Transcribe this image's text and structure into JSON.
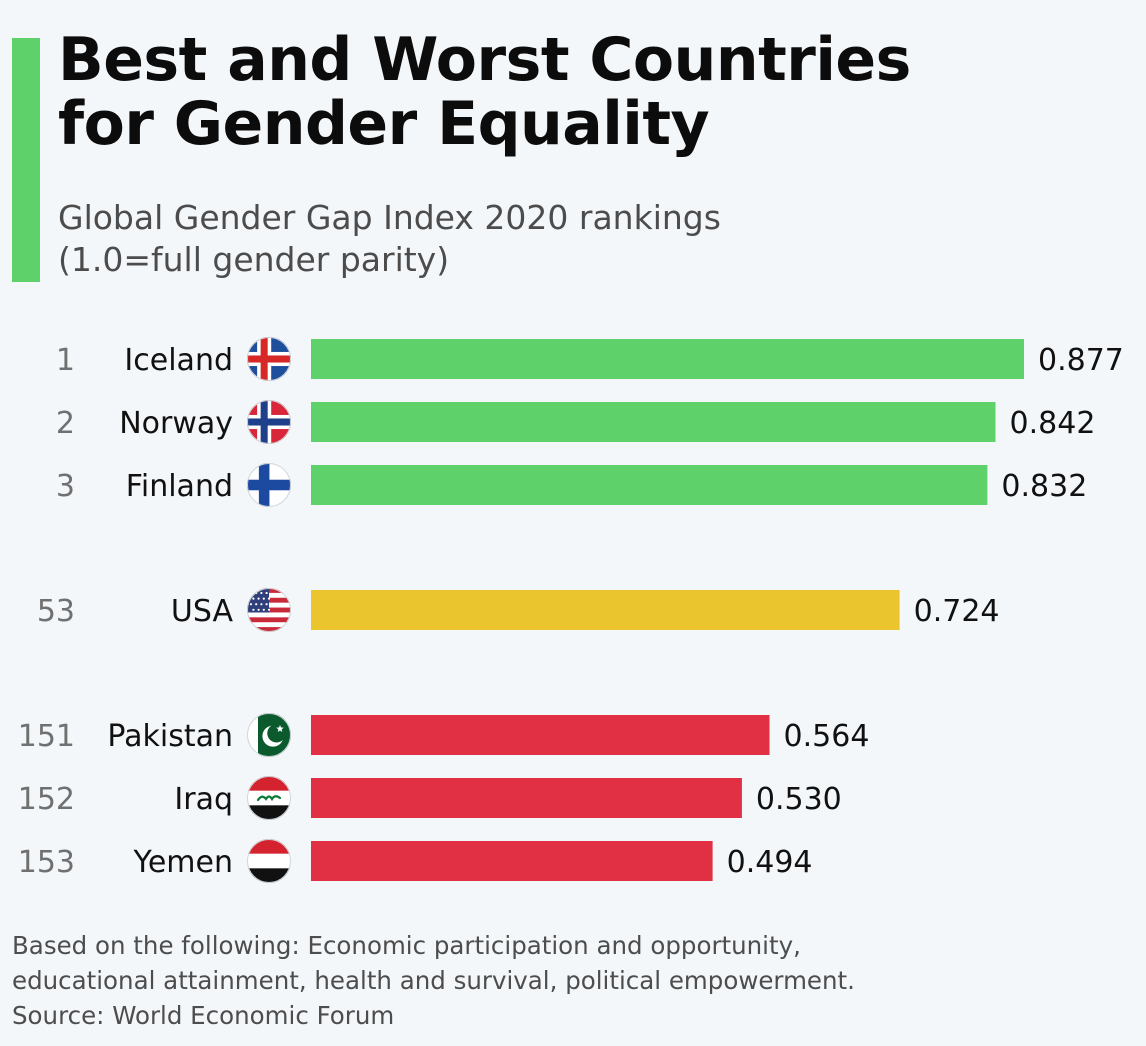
{
  "chart_data": {
    "type": "bar",
    "orientation": "horizontal",
    "title_lines": [
      "Best and Worst Countries",
      "for Gender Equality"
    ],
    "subtitle_lines": [
      "Global Gender Gap Index 2020 rankings",
      "(1.0=full gender parity)"
    ],
    "xlim": [
      0,
      0.877
    ],
    "grid": false,
    "legend": "none",
    "groups": [
      {
        "color": "#5ed16b",
        "rows": [
          {
            "rank": "1",
            "country": "Iceland",
            "flag": "iceland-flag-icon",
            "value": 0.877,
            "value_label": "0.877"
          },
          {
            "rank": "2",
            "country": "Norway",
            "flag": "norway-flag-icon",
            "value": 0.842,
            "value_label": "0.842"
          },
          {
            "rank": "3",
            "country": "Finland",
            "flag": "finland-flag-icon",
            "value": 0.832,
            "value_label": "0.832"
          }
        ]
      },
      {
        "color": "#ebc52e",
        "rows": [
          {
            "rank": "53",
            "country": "USA",
            "flag": "usa-flag-icon",
            "value": 0.724,
            "value_label": "0.724"
          }
        ]
      },
      {
        "color": "#e12f44",
        "rows": [
          {
            "rank": "151",
            "country": "Pakistan",
            "flag": "pakistan-flag-icon",
            "value": 0.564,
            "value_label": "0.564"
          },
          {
            "rank": "152",
            "country": "Iraq",
            "flag": "iraq-flag-icon",
            "value": 0.53,
            "value_label": "0.530"
          },
          {
            "rank": "153",
            "country": "Yemen",
            "flag": "yemen-flag-icon",
            "value": 0.494,
            "value_label": "0.494"
          }
        ]
      }
    ]
  },
  "footnote_lines": [
    "Based on the following: Economic participation and opportunity,",
    "educational attainment, health and survival, political empowerment.",
    "Source: World Economic Forum"
  ]
}
